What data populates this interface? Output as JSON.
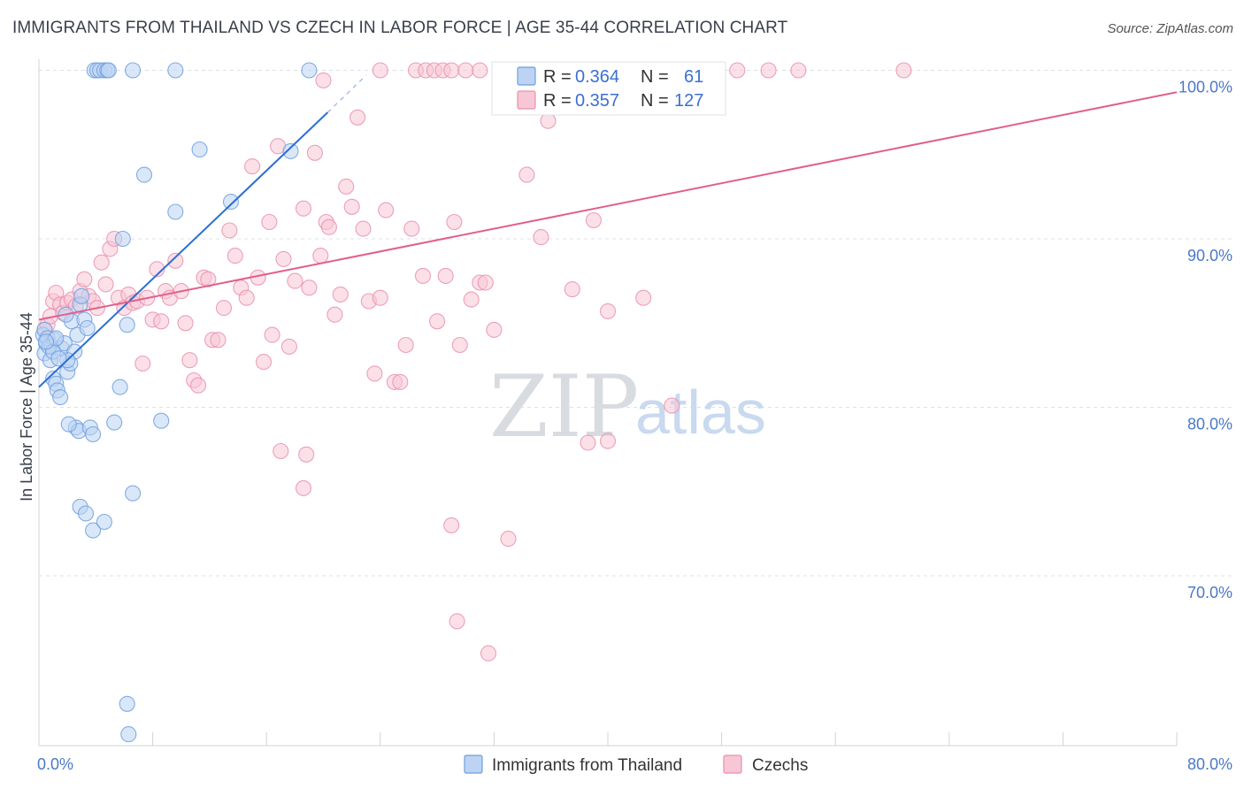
{
  "title": "IMMIGRANTS FROM THAILAND VS CZECH IN LABOR FORCE | AGE 35-44 CORRELATION CHART",
  "source": "Source: ZipAtlas.com",
  "watermark": {
    "part1": "ZIP",
    "part2": "atlas"
  },
  "colors": {
    "blue": "#6e9fe0",
    "blue_fill": "#bcd3f3",
    "blue_line": "#2b6fd3",
    "pink": "#ea90ad",
    "pink_fill": "#f7c7d6",
    "pink_line": "#e0608b",
    "grid": "#dde1e8",
    "tick_text": "#4a78c8"
  },
  "legend": {
    "rows": [
      {
        "r_label": "R =",
        "r_value": "0.364",
        "n_label": "N =",
        "n_value": "61"
      },
      {
        "r_label": "R =",
        "r_value": "0.357",
        "n_label": "N =",
        "n_value": "127"
      }
    ]
  },
  "chart_data": {
    "type": "scatter",
    "title": "IMMIGRANTS FROM THAILAND VS CZECH IN LABOR FORCE | AGE 35-44 CORRELATION CHART",
    "xlabel": "",
    "ylabel": "In Labor Force | Age 35-44",
    "xlim": [
      0,
      80
    ],
    "ylim": [
      60,
      101
    ],
    "x_tick_labels": [
      "0.0%",
      "80.0%"
    ],
    "y_ticks": [
      70,
      80,
      90,
      100
    ],
    "y_tick_labels": [
      "70.0%",
      "80.0%",
      "90.0%",
      "100.0%"
    ],
    "series": [
      {
        "name": "Immigrants from Thailand",
        "r": 0.364,
        "n": 61,
        "trend": {
          "x0": 0,
          "y0": 81.2,
          "x1": 20.3,
          "y1": 97.5,
          "dash_to_x": 23.0,
          "dash_to_y": 99.7
        },
        "points": [
          [
            0.3,
            84.3
          ],
          [
            0.4,
            84.6
          ],
          [
            0.5,
            83.8
          ],
          [
            0.4,
            83.2
          ],
          [
            0.6,
            84.1
          ],
          [
            0.8,
            82.8
          ],
          [
            0.9,
            83.6
          ],
          [
            1.0,
            81.7
          ],
          [
            1.2,
            81.4
          ],
          [
            1.3,
            81.0
          ],
          [
            1.5,
            80.6
          ],
          [
            1.1,
            84.0
          ],
          [
            1.6,
            83.5
          ],
          [
            1.8,
            83.8
          ],
          [
            2.0,
            82.1
          ],
          [
            2.2,
            82.6
          ],
          [
            2.3,
            85.1
          ],
          [
            2.5,
            83.3
          ],
          [
            2.7,
            84.3
          ],
          [
            2.9,
            86.1
          ],
          [
            3.0,
            86.6
          ],
          [
            3.2,
            85.2
          ],
          [
            3.4,
            84.7
          ],
          [
            2.6,
            78.8
          ],
          [
            2.8,
            78.6
          ],
          [
            3.6,
            78.8
          ],
          [
            3.8,
            78.4
          ],
          [
            5.3,
            79.1
          ],
          [
            8.6,
            79.2
          ],
          [
            2.9,
            74.1
          ],
          [
            3.3,
            73.7
          ],
          [
            3.8,
            72.7
          ],
          [
            4.6,
            73.2
          ],
          [
            6.6,
            74.9
          ],
          [
            5.7,
            81.2
          ],
          [
            6.2,
            84.9
          ],
          [
            5.9,
            90.0
          ],
          [
            7.4,
            93.8
          ],
          [
            9.6,
            91.6
          ],
          [
            11.3,
            95.3
          ],
          [
            13.5,
            92.2
          ],
          [
            17.7,
            95.2
          ],
          [
            3.9,
            100
          ],
          [
            4.1,
            100
          ],
          [
            4.3,
            100
          ],
          [
            4.6,
            100
          ],
          [
            4.8,
            100
          ],
          [
            4.9,
            100
          ],
          [
            6.6,
            100
          ],
          [
            9.6,
            100
          ],
          [
            19.0,
            100
          ],
          [
            6.2,
            62.4
          ],
          [
            6.3,
            60.6
          ],
          [
            1.9,
            85.5
          ],
          [
            2.0,
            82.8
          ],
          [
            2.1,
            79.0
          ],
          [
            0.7,
            83.6
          ],
          [
            1.0,
            83.3
          ],
          [
            1.2,
            84.1
          ],
          [
            1.4,
            82.9
          ],
          [
            0.5,
            83.9
          ]
        ]
      },
      {
        "name": "Czechs",
        "r": 0.357,
        "n": 127,
        "trend": {
          "x0": 0,
          "y0": 85.2,
          "x1": 80,
          "y1": 98.7
        },
        "points": [
          [
            0.4,
            84.6
          ],
          [
            0.6,
            84.9
          ],
          [
            0.8,
            85.4
          ],
          [
            1.0,
            86.3
          ],
          [
            1.2,
            86.8
          ],
          [
            1.5,
            86.1
          ],
          [
            1.7,
            85.6
          ],
          [
            2.0,
            86.2
          ],
          [
            2.3,
            86.4
          ],
          [
            2.6,
            86.0
          ],
          [
            2.9,
            86.9
          ],
          [
            3.2,
            87.6
          ],
          [
            3.5,
            86.6
          ],
          [
            3.8,
            86.3
          ],
          [
            4.1,
            85.9
          ],
          [
            4.4,
            88.6
          ],
          [
            4.7,
            87.3
          ],
          [
            5.0,
            89.4
          ],
          [
            5.3,
            90.0
          ],
          [
            5.6,
            86.5
          ],
          [
            6.0,
            85.9
          ],
          [
            6.3,
            86.7
          ],
          [
            6.6,
            86.2
          ],
          [
            6.9,
            86.3
          ],
          [
            7.3,
            82.6
          ],
          [
            7.6,
            86.5
          ],
          [
            8.0,
            85.2
          ],
          [
            8.3,
            88.2
          ],
          [
            8.6,
            85.1
          ],
          [
            8.9,
            86.9
          ],
          [
            9.2,
            86.5
          ],
          [
            9.6,
            88.7
          ],
          [
            10.0,
            86.9
          ],
          [
            10.3,
            85.0
          ],
          [
            10.6,
            82.8
          ],
          [
            10.9,
            81.6
          ],
          [
            11.2,
            81.3
          ],
          [
            11.6,
            87.7
          ],
          [
            11.9,
            87.6
          ],
          [
            12.2,
            84.0
          ],
          [
            12.6,
            84.0
          ],
          [
            13.0,
            85.9
          ],
          [
            13.4,
            90.5
          ],
          [
            13.8,
            89.0
          ],
          [
            14.2,
            87.1
          ],
          [
            14.6,
            86.5
          ],
          [
            15.0,
            94.3
          ],
          [
            15.4,
            87.7
          ],
          [
            15.8,
            82.7
          ],
          [
            16.2,
            91.0
          ],
          [
            16.4,
            84.3
          ],
          [
            16.8,
            95.5
          ],
          [
            17.2,
            88.8
          ],
          [
            17.6,
            83.6
          ],
          [
            18.0,
            87.5
          ],
          [
            18.6,
            91.8
          ],
          [
            19.0,
            87.1
          ],
          [
            19.4,
            95.1
          ],
          [
            19.8,
            89.0
          ],
          [
            20.2,
            91.0
          ],
          [
            20.4,
            90.7
          ],
          [
            20.8,
            85.5
          ],
          [
            21.2,
            86.7
          ],
          [
            21.6,
            93.1
          ],
          [
            22.0,
            91.9
          ],
          [
            22.4,
            97.2
          ],
          [
            22.8,
            90.6
          ],
          [
            23.2,
            86.3
          ],
          [
            23.6,
            82.0
          ],
          [
            24.0,
            86.5
          ],
          [
            24.4,
            91.7
          ],
          [
            25.0,
            81.5
          ],
          [
            25.4,
            81.5
          ],
          [
            25.8,
            83.7
          ],
          [
            26.2,
            90.6
          ],
          [
            27.0,
            87.8
          ],
          [
            28.0,
            85.1
          ],
          [
            28.6,
            87.8
          ],
          [
            29.2,
            91.0
          ],
          [
            29.6,
            83.7
          ],
          [
            30.4,
            86.4
          ],
          [
            31.0,
            87.4
          ],
          [
            31.4,
            87.4
          ],
          [
            32.0,
            84.6
          ],
          [
            18.8,
            77.2
          ],
          [
            17.0,
            77.4
          ],
          [
            18.6,
            75.2
          ],
          [
            29.0,
            73.0
          ],
          [
            33.0,
            72.2
          ],
          [
            29.4,
            67.3
          ],
          [
            31.6,
            65.4
          ],
          [
            40.0,
            78.0
          ],
          [
            38.6,
            77.9
          ],
          [
            37.5,
            87.0
          ],
          [
            40.0,
            85.7
          ],
          [
            42.5,
            86.5
          ],
          [
            44.5,
            80.1
          ],
          [
            39.0,
            91.1
          ],
          [
            34.3,
            93.8
          ],
          [
            35.3,
            90.1
          ],
          [
            35.8,
            97.0
          ],
          [
            24.0,
            100
          ],
          [
            26.5,
            100
          ],
          [
            27.2,
            100
          ],
          [
            27.8,
            100
          ],
          [
            28.4,
            100
          ],
          [
            29.0,
            100
          ],
          [
            30.0,
            100
          ],
          [
            31.0,
            100
          ],
          [
            32.5,
            100
          ],
          [
            33.4,
            100
          ],
          [
            34.4,
            100
          ],
          [
            35.7,
            100
          ],
          [
            36.6,
            100
          ],
          [
            37.5,
            100
          ],
          [
            38.6,
            100
          ],
          [
            39.2,
            100
          ],
          [
            40.2,
            100
          ],
          [
            41.0,
            100
          ],
          [
            46.0,
            100
          ],
          [
            49.1,
            100
          ],
          [
            51.3,
            100
          ],
          [
            53.4,
            100
          ],
          [
            60.8,
            100
          ],
          [
            20.0,
            99.4
          ]
        ]
      }
    ]
  }
}
